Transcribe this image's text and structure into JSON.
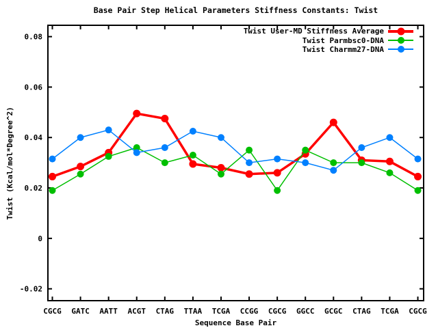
{
  "chart_data": {
    "type": "line",
    "title": "Base Pair Step Helical Parameters Stiffness Constants: Twist",
    "xlabel": "Sequence Base Pair",
    "ylabel": "Twist (Kcal/mol*Degree^2)",
    "categories": [
      "CGCG",
      "GATC",
      "AATT",
      "ACGT",
      "CTAG",
      "TTAA",
      "TCGA",
      "CCGG",
      "CGCG",
      "GGCC",
      "GCGC",
      "CTAG",
      "TCGA",
      "CGCG"
    ],
    "series": [
      {
        "name": "Twist User-MD Stiffness Average",
        "color": "#ff0000",
        "line_width": 3.5,
        "marker_radius": 5.5,
        "values": [
          0.0245,
          0.0285,
          0.034,
          0.0495,
          0.0475,
          0.0295,
          0.028,
          0.0255,
          0.026,
          0.0335,
          0.046,
          0.031,
          0.0305,
          0.0245
        ]
      },
      {
        "name": "Twist Parmbsc0-DNA",
        "color": "#00bf00",
        "line_width": 1.5,
        "marker_radius": 5,
        "values": [
          0.019,
          0.0255,
          0.0325,
          0.036,
          0.03,
          0.033,
          0.0255,
          0.035,
          0.019,
          0.035,
          0.03,
          0.03,
          0.026,
          0.019
        ]
      },
      {
        "name": "Twist Charmm27-DNA",
        "color": "#0080ff",
        "line_width": 1.5,
        "marker_radius": 5,
        "values": [
          0.0315,
          0.04,
          0.043,
          0.034,
          0.036,
          0.0425,
          0.04,
          0.03,
          0.0315,
          0.03,
          0.027,
          0.036,
          0.04,
          0.0315
        ]
      }
    ],
    "ylim": [
      -0.0247,
      0.0845
    ],
    "yticks": [
      {
        "value": 0.08,
        "label": "0.08"
      },
      {
        "value": 0.06,
        "label": "0.06"
      },
      {
        "value": 0.04,
        "label": "0.04"
      },
      {
        "value": 0.02,
        "label": "0.02"
      },
      {
        "value": 0,
        "label": "0"
      },
      {
        "value": -0.02,
        "label": "-0.02"
      }
    ],
    "grid": false,
    "legend_position": "top-right-inside"
  }
}
